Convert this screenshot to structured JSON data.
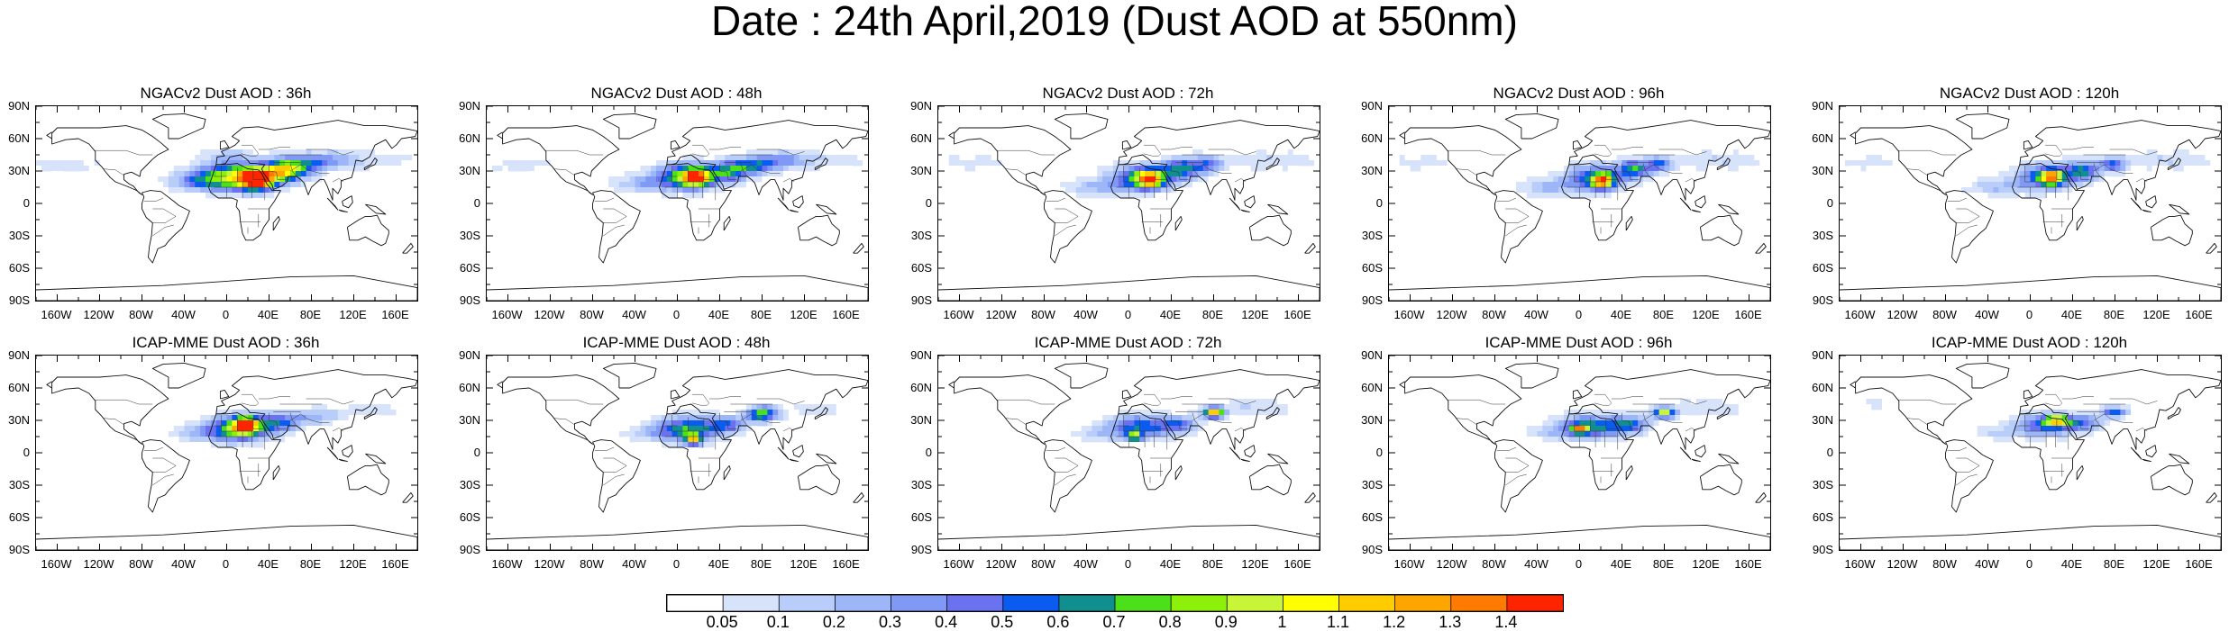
{
  "title": "Date : 24th April,2019 (Dust AOD at 550nm)",
  "rows": [
    {
      "panels": [
        {
          "title": "NGACv2 Dust AOD : 36h"
        },
        {
          "title": "NGACv2 Dust AOD : 48h"
        },
        {
          "title": "NGACv2 Dust AOD : 72h"
        },
        {
          "title": "NGACv2 Dust AOD : 96h"
        },
        {
          "title": "NGACv2 Dust AOD : 120h"
        }
      ]
    },
    {
      "panels": [
        {
          "title": "ICAP-MME Dust AOD : 36h"
        },
        {
          "title": "ICAP-MME Dust AOD : 48h"
        },
        {
          "title": "ICAP-MME Dust AOD : 72h"
        },
        {
          "title": "ICAP-MME Dust AOD : 96h"
        },
        {
          "title": "ICAP-MME Dust AOD : 120h"
        }
      ]
    }
  ],
  "lat_labels": [
    "90N",
    "60N",
    "30N",
    "0",
    "30S",
    "60S",
    "90S"
  ],
  "lon_labels": [
    "160W",
    "120W",
    "80W",
    "40W",
    "0",
    "40E",
    "80E",
    "120E",
    "160E"
  ],
  "colorbar": {
    "labels": [
      "0.05",
      "0.1",
      "0.2",
      "0.3",
      "0.4",
      "0.5",
      "0.6",
      "0.7",
      "0.8",
      "0.9",
      "1",
      "1.1",
      "1.2",
      "1.3",
      "1.4"
    ],
    "colors": [
      "#ffffff",
      "#d7e3fb",
      "#b9cdfa",
      "#9db6f7",
      "#8099f5",
      "#6b72f0",
      "#0a5cf0",
      "#118f8f",
      "#4ce01b",
      "#8cf00b",
      "#c8f538",
      "#ffff00",
      "#ffcc00",
      "#ffa500",
      "#ff7a00",
      "#ff2400"
    ]
  }
}
